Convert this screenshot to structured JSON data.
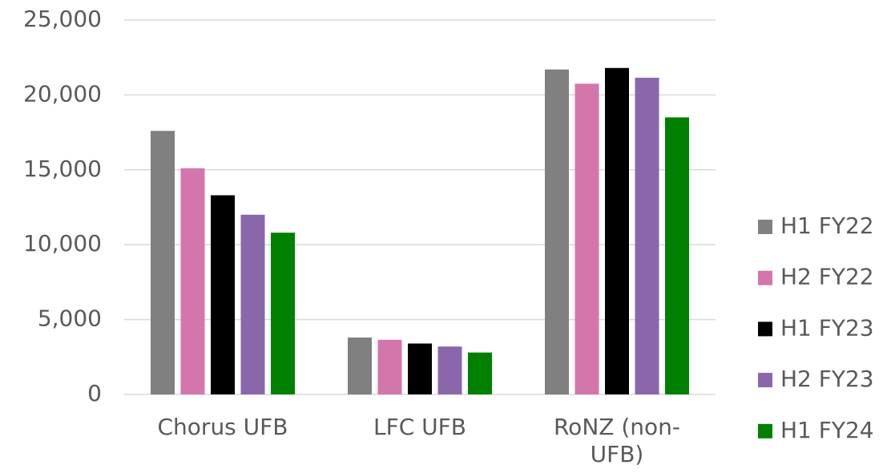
{
  "chart_data": {
    "type": "bar",
    "categories": [
      "Chorus UFB",
      "LFC UFB",
      "RoNZ (non-UFB)"
    ],
    "series": [
      {
        "name": "H1 FY22",
        "color": "#808080",
        "values": [
          17600,
          3800,
          21700
        ]
      },
      {
        "name": "H2 FY22",
        "color": "#d476ac",
        "values": [
          15100,
          3650,
          20750
        ]
      },
      {
        "name": "H1 FY23",
        "color": "#000000",
        "values": [
          13300,
          3400,
          21800
        ]
      },
      {
        "name": "H2 FY23",
        "color": "#8a67ab",
        "values": [
          12000,
          3200,
          21150
        ]
      },
      {
        "name": "H1 FY24",
        "color": "#008000",
        "values": [
          10800,
          2800,
          18500
        ]
      }
    ],
    "ylim": [
      0,
      25000
    ],
    "yticks": [
      {
        "value": 0,
        "label": "0"
      },
      {
        "value": 5000,
        "label": "5,000"
      },
      {
        "value": 10000,
        "label": "10,000"
      },
      {
        "value": 15000,
        "label": "15,000"
      },
      {
        "value": 20000,
        "label": "20,000"
      },
      {
        "value": 25000,
        "label": "25,000"
      }
    ],
    "grid": true,
    "legend": "right"
  }
}
